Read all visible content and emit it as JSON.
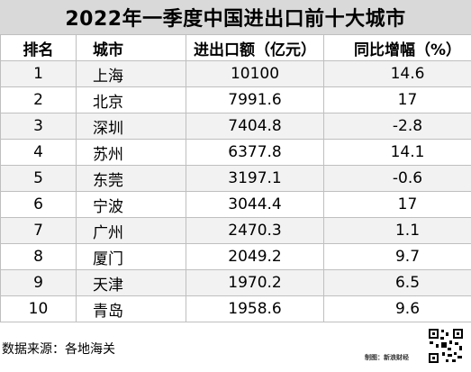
{
  "title": "2022年一季度中国进出口前十大城市",
  "chart_data": {
    "type": "table",
    "columns": [
      "排名",
      "城市",
      "进出口额（亿元）",
      "同比增幅（%）"
    ],
    "rows": [
      {
        "rank": "1",
        "city": "上海",
        "value": "10100",
        "growth": "14.6"
      },
      {
        "rank": "2",
        "city": "北京",
        "value": "7991.6",
        "growth": "17"
      },
      {
        "rank": "3",
        "city": "深圳",
        "value": "7404.8",
        "growth": "-2.8"
      },
      {
        "rank": "4",
        "city": "苏州",
        "value": "6377.8",
        "growth": "14.1"
      },
      {
        "rank": "5",
        "city": "东莞",
        "value": "3197.1",
        "growth": "-0.6"
      },
      {
        "rank": "6",
        "city": "宁波",
        "value": "3044.4",
        "growth": "17"
      },
      {
        "rank": "7",
        "city": "广州",
        "value": "2470.3",
        "growth": "1.1"
      },
      {
        "rank": "8",
        "city": "厦门",
        "value": "2049.2",
        "growth": "9.7"
      },
      {
        "rank": "9",
        "city": "天津",
        "value": "1970.2",
        "growth": "6.5"
      },
      {
        "rank": "10",
        "city": "青岛",
        "value": "1958.6",
        "growth": "9.6"
      }
    ]
  },
  "footer": {
    "source": "数据来源：各地海关",
    "credit": "制图：新浪财经"
  },
  "colors": {
    "title_bg": "#d9d9d9",
    "row_alt": "#f2f2f2",
    "border": "#bfbfbf"
  },
  "icons": {
    "qr": "qr-code-icon"
  }
}
